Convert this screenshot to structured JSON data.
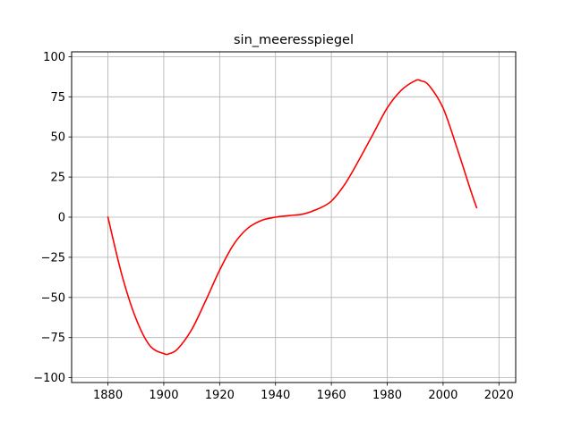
{
  "chart_data": {
    "type": "line",
    "title": "sin_meeresspiegel",
    "xlabel": "",
    "ylabel": "",
    "xlim": [
      1867,
      2026
    ],
    "ylim": [
      -103,
      103
    ],
    "grid": true,
    "x_ticks": [
      1880,
      1900,
      1920,
      1940,
      1960,
      1980,
      2000,
      2020
    ],
    "x_tick_labels": [
      "1880",
      "1900",
      "1920",
      "1940",
      "1960",
      "1980",
      "2000",
      "2020"
    ],
    "y_ticks": [
      100,
      75,
      50,
      25,
      0,
      -25,
      -50,
      -75,
      -100
    ],
    "y_tick_labels": [
      "100",
      "75",
      "50",
      "25",
      "0",
      "−25",
      "−50",
      "−75",
      "−100"
    ],
    "series": [
      {
        "color": "#ff0000",
        "x": [
          1880,
          1885,
          1890,
          1895,
          1900,
          1902,
          1905,
          1910,
          1915,
          1920,
          1925,
          1930,
          1935,
          1940,
          1945,
          1950,
          1955,
          1960,
          1965,
          1970,
          1975,
          1980,
          1985,
          1990,
          1992,
          1995,
          2000,
          2005,
          2010,
          2012
        ],
        "y": [
          0,
          -36,
          -63,
          -80,
          -85,
          -85,
          -82,
          -70,
          -52,
          -33,
          -17,
          -7,
          -2,
          0,
          1,
          2,
          5,
          10,
          21,
          36,
          52,
          68,
          79,
          85,
          85,
          82,
          68,
          43,
          16,
          6
        ]
      }
    ]
  }
}
